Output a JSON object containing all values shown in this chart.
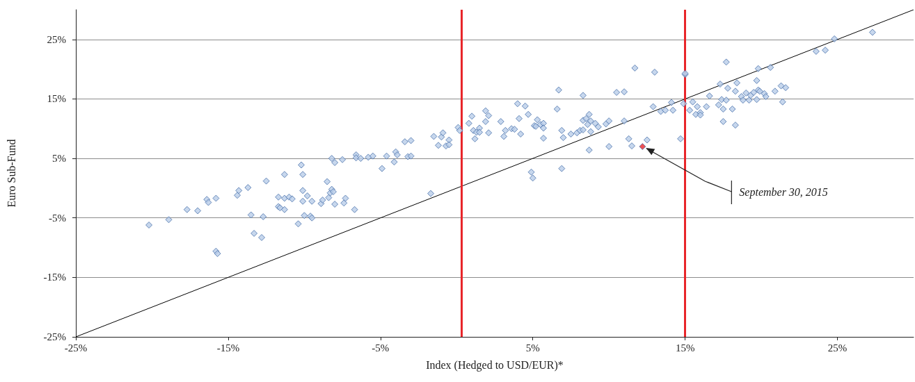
{
  "chart_data": {
    "type": "scatter",
    "xlabel": "Index (Hedged to USD/EUR)*",
    "ylabel": "Euro Sub-Fund",
    "xlim": [
      -25,
      30
    ],
    "ylim": [
      -25,
      30
    ],
    "xticks": [
      {
        "value": -25,
        "label": "-25%"
      },
      {
        "value": -15,
        "label": "-15%"
      },
      {
        "value": -5,
        "label": "-5%"
      },
      {
        "value": 5,
        "label": "5%"
      },
      {
        "value": 15,
        "label": "15%"
      },
      {
        "value": 25,
        "label": "25%"
      }
    ],
    "yticks": [
      {
        "value": -25,
        "label": "-25%"
      },
      {
        "value": -15,
        "label": "-15%"
      },
      {
        "value": -5,
        "label": "-5%"
      },
      {
        "value": 5,
        "label": "5%"
      },
      {
        "value": 15,
        "label": "15%"
      },
      {
        "value": 25,
        "label": "25%"
      }
    ],
    "grid": "y",
    "marker": "diamond",
    "ref_lines": [
      {
        "axis": "x",
        "value": 0.3,
        "color": "#e8262a"
      },
      {
        "axis": "x",
        "value": 15,
        "color": "#e8262a"
      }
    ],
    "annotations": [
      {
        "text": "September 30, 2015",
        "x": 12.2,
        "y": 7.0
      }
    ],
    "series": [
      {
        "color": "#b9cde8",
        "x": [
          -20.2,
          -18.9,
          -17.7,
          -17.0,
          -16.4,
          -16.3,
          -15.8,
          -15.8,
          -15.7,
          -14.4,
          -14.3,
          -13.7,
          -13.5,
          -13.3,
          -12.8,
          -12.7,
          -12.5,
          -11.7,
          -11.7,
          -11.6,
          -11.3,
          -11.3,
          -11.3,
          -11.0,
          -10.8,
          -10.4,
          -10.2,
          -10.1,
          -10.1,
          -10.1,
          -10.0,
          -9.8,
          -9.6,
          -9.5,
          -9.5,
          -8.9,
          -8.8,
          -8.5,
          -8.4,
          -8.3,
          -8.2,
          -8.2,
          -8.1,
          -8.0,
          -8.0,
          -7.5,
          -7.4,
          -7.3,
          -6.7,
          -6.6,
          -6.6,
          -6.3,
          -5.8,
          -5.5,
          -4.9,
          -4.6,
          -4.1,
          -4.0,
          -3.9,
          -3.4,
          -3.2,
          -3.0,
          -3.0,
          -1.7,
          -1.5,
          -1.2,
          -1.0,
          -0.9,
          -0.7,
          -0.5,
          -0.5,
          0.1,
          0.2,
          0.8,
          1.0,
          1.1,
          1.2,
          1.3,
          1.5,
          1.5,
          1.9,
          2.1,
          1.9,
          2.1,
          2.9,
          3.2,
          3.1,
          3.6,
          3.8,
          4.0,
          4.1,
          4.2,
          4.5,
          4.7,
          4.9,
          5.0,
          5.1,
          5.3,
          5.2,
          5.5,
          5.7,
          5.7,
          5.7,
          6.6,
          6.7,
          6.9,
          7.0,
          6.9,
          7.5,
          7.9,
          8.1,
          8.3,
          8.3,
          8.3,
          8.5,
          8.7,
          8.8,
          8.6,
          8.8,
          8.7,
          9.1,
          9.3,
          9.8,
          10.0,
          10.0,
          10.5,
          11.0,
          11.0,
          11.3,
          11.5,
          12.5,
          11.7,
          13.0,
          12.9,
          13.4,
          13.7,
          14.1,
          14.2,
          14.7,
          14.9,
          15.0,
          15.0,
          15.5,
          15.3,
          15.8,
          15.7,
          16.0,
          16.0,
          16.4,
          16.6,
          17.3,
          17.4,
          17.2,
          17.5,
          17.5,
          17.7,
          17.7,
          17.8,
          18.1,
          18.3,
          18.4,
          18.3,
          18.7,
          18.8,
          19.0,
          19.2,
          19.3,
          19.5,
          19.7,
          19.7,
          19.8,
          19.9,
          19.8,
          20.2,
          20.3,
          20.6,
          20.9,
          21.3,
          21.6,
          21.4,
          23.6,
          24.2,
          24.8,
          27.3
        ],
        "values": [
          -6.2,
          -5.3,
          -3.6,
          -3.8,
          -1.9,
          -2.4,
          -1.7,
          -10.6,
          -11.0,
          -1.2,
          -0.4,
          0.1,
          -4.5,
          -7.6,
          -8.3,
          -4.8,
          1.2,
          -1.5,
          -3.1,
          -3.3,
          2.3,
          -3.6,
          -1.7,
          -1.5,
          -1.8,
          -6.0,
          3.9,
          -0.4,
          2.3,
          -2.2,
          -4.6,
          -1.3,
          -4.7,
          -5.0,
          -2.2,
          -2.6,
          -2.0,
          1.1,
          -1.6,
          -0.8,
          5.0,
          -0.2,
          -0.6,
          -2.7,
          4.3,
          4.8,
          -2.5,
          -1.7,
          -3.6,
          5.6,
          5.1,
          5.0,
          5.2,
          5.4,
          3.3,
          5.4,
          4.4,
          6.1,
          5.6,
          7.8,
          5.3,
          8.0,
          5.4,
          -0.9,
          8.7,
          7.2,
          8.6,
          9.3,
          7.1,
          8.1,
          7.3,
          10.2,
          9.7,
          10.9,
          12.1,
          9.7,
          8.3,
          9.4,
          10.1,
          9.4,
          13.0,
          12.2,
          11.2,
          9.3,
          11.2,
          9.7,
          8.7,
          10.0,
          9.9,
          14.2,
          11.7,
          9.1,
          13.8,
          12.4,
          2.7,
          1.7,
          10.5,
          11.5,
          10.4,
          10.7,
          10.9,
          10.1,
          8.4,
          13.3,
          16.5,
          9.7,
          8.5,
          3.3,
          9.1,
          9.3,
          9.7,
          15.6,
          9.8,
          11.4,
          11.7,
          12.4,
          11.3,
          10.7,
          9.5,
          6.4,
          10.9,
          10.3,
          10.8,
          11.3,
          7.0,
          16.1,
          16.2,
          11.3,
          8.3,
          7.1,
          8.1,
          20.2,
          19.5,
          13.7,
          12.9,
          13.1,
          14.4,
          13.1,
          8.3,
          14.2,
          19.1,
          19.3,
          14.5,
          13.1,
          13.7,
          12.4,
          12.7,
          12.3,
          13.7,
          15.5,
          17.5,
          14.9,
          14.0,
          13.3,
          11.2,
          14.8,
          21.2,
          16.8,
          13.3,
          16.3,
          17.7,
          10.6,
          15.4,
          14.8,
          16.0,
          14.8,
          15.6,
          16.1,
          18.1,
          14.9,
          16.5,
          16.3,
          20.1,
          15.9,
          15.4,
          20.3,
          16.3,
          17.2,
          16.9,
          14.5,
          23.0,
          23.2,
          25.1,
          26.2
        ]
      },
      {
        "color": "#e8262a",
        "x": [
          12.2
        ],
        "values": [
          7.0
        ]
      },
      {
        "type": "line",
        "color": "#000000",
        "marker": "none",
        "x": [
          -25,
          30
        ],
        "values": [
          -25,
          30
        ]
      }
    ]
  }
}
